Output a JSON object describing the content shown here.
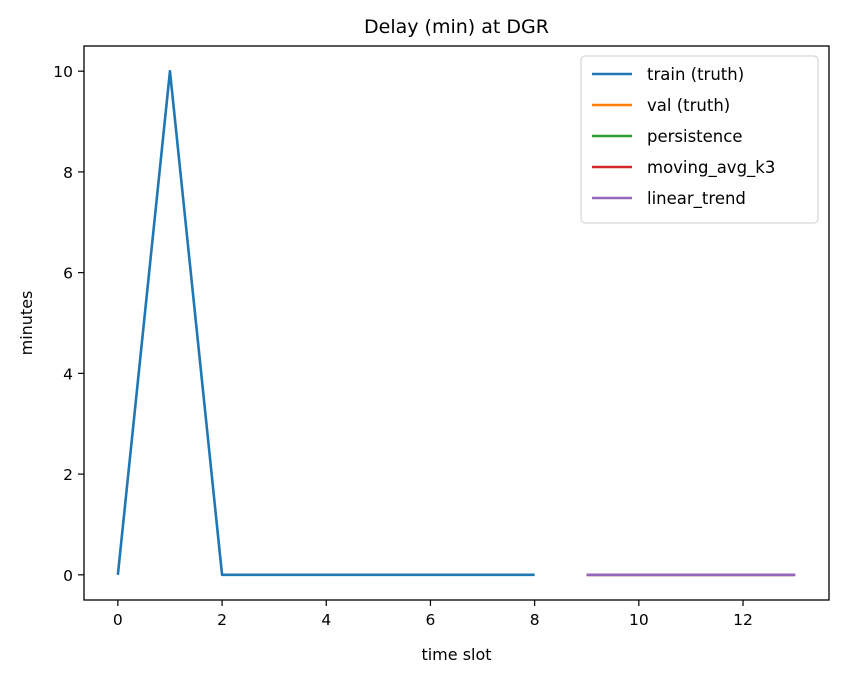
{
  "chart_data": {
    "type": "line",
    "title": "Delay (min) at DGR",
    "xlabel": "time slot",
    "ylabel": "minutes",
    "xlim": [
      -0.65,
      13.65
    ],
    "ylim": [
      -0.5,
      10.5
    ],
    "xticks": [
      0,
      2,
      4,
      6,
      8,
      10,
      12
    ],
    "yticks": [
      0,
      2,
      4,
      6,
      8,
      10
    ],
    "grid": false,
    "legend_position": "top-right",
    "series": [
      {
        "name": "train (truth)",
        "color": "#1f77b4",
        "x": [
          0,
          1,
          2,
          3,
          4,
          5,
          6,
          7,
          8
        ],
        "y": [
          0,
          10,
          0,
          0,
          0,
          0,
          0,
          0,
          0
        ]
      },
      {
        "name": "val (truth)",
        "color": "#ff7f0e",
        "x": [
          9,
          10,
          11,
          12,
          13
        ],
        "y": [
          0,
          0,
          0,
          0,
          0
        ]
      },
      {
        "name": "persistence",
        "color": "#2ca02c",
        "x": [
          9,
          10,
          11,
          12,
          13
        ],
        "y": [
          0,
          0,
          0,
          0,
          0
        ]
      },
      {
        "name": "moving_avg_k3",
        "color": "#d62728",
        "x": [
          9,
          10,
          11,
          12,
          13
        ],
        "y": [
          0,
          0,
          0,
          0,
          0
        ]
      },
      {
        "name": "linear_trend",
        "color": "#9467bd",
        "x": [
          9,
          10,
          11,
          12,
          13
        ],
        "y": [
          0,
          0,
          0,
          0,
          0
        ]
      }
    ]
  }
}
